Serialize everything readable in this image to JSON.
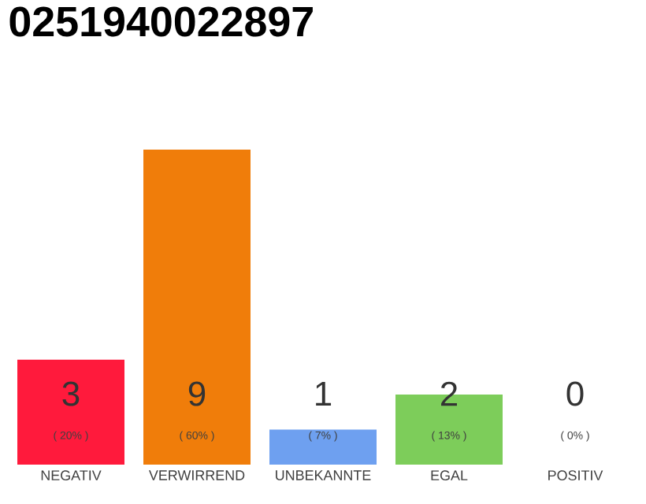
{
  "chart_data": {
    "type": "bar",
    "title": "0251940022897",
    "categories": [
      "NEGATIV",
      "VERWIRREND",
      "UNBEKANNTE",
      "EGAL",
      "POSITIV"
    ],
    "values": [
      3,
      9,
      1,
      2,
      0
    ],
    "colors": [
      "#ff1a3c",
      "#f07d0a",
      "#6ea0f0",
      "#7dcd5a",
      null
    ],
    "data_labels": true,
    "annotations": [
      "( 20% )",
      "( 60% )",
      "( 7% )",
      "( 13% )",
      "( 0% )"
    ]
  }
}
